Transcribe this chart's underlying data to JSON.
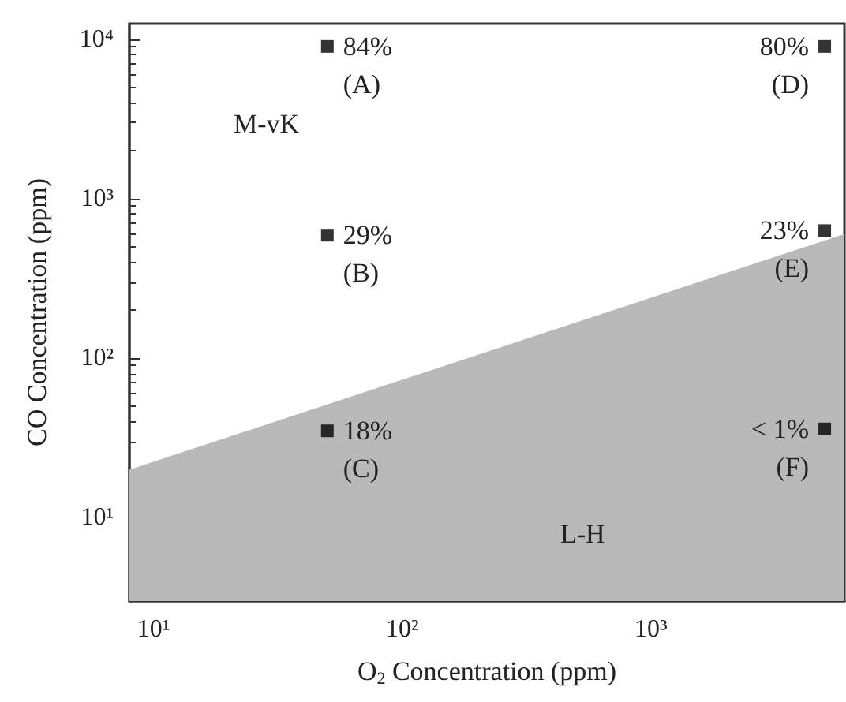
{
  "chart_data": {
    "type": "scatter",
    "xlabel": "O$_{2}$ Concentration (ppm)",
    "ylabel": "CO Concentration (ppm)",
    "log": "xy",
    "xlim": [
      8,
      6000
    ],
    "ylim": [
      3,
      12500
    ],
    "marker": "square",
    "xticks": [
      {
        "value": 10,
        "label": "10¹"
      },
      {
        "value": 100,
        "label": "10²"
      },
      {
        "value": 1000,
        "label": "10³"
      }
    ],
    "yticks": [
      {
        "value": 10,
        "label": "10¹"
      },
      {
        "value": 100,
        "label": "10²"
      },
      {
        "value": 1000,
        "label": "10³"
      },
      {
        "value": 10000,
        "label": "10⁴"
      }
    ],
    "series": [
      {
        "type": "area",
        "color": "#b9b9b9",
        "marker": "none",
        "x": [
          8,
          6000
        ],
        "values": [
          20,
          600
        ]
      },
      {
        "color": "#000000",
        "x": [
          50,
          50,
          50
        ],
        "values": [
          9000,
          590,
          35
        ]
      },
      {
        "color": "#000000",
        "x": [
          5000,
          5000,
          5000
        ],
        "values": [
          9000,
          630,
          36
        ]
      }
    ],
    "annotations": [
      "84%\n(A)",
      "29%\n(B)",
      "18%\n(C)",
      "80%\n(D)",
      "23%\n(E)",
      "< 1%\n(F)",
      "M-vK",
      "L-H"
    ]
  }
}
